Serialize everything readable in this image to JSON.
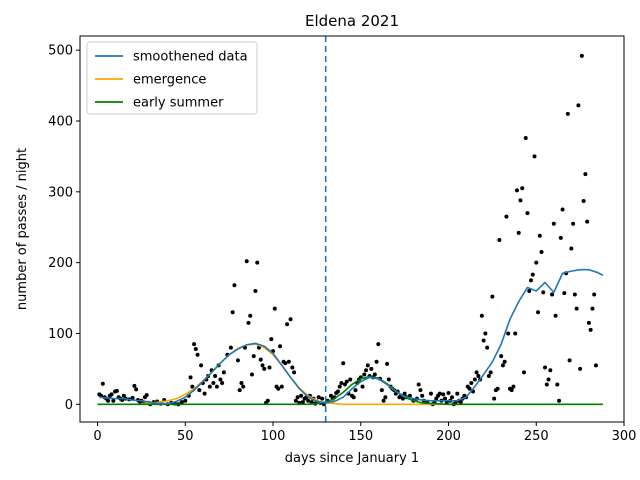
{
  "chart_data": {
    "type": "scatter",
    "title": "Eldena 2021",
    "xlabel": "days since January 1",
    "ylabel": "number of passes / night",
    "xlim": [
      -10,
      300
    ],
    "ylim": [
      -25,
      520
    ],
    "xticks": [
      0,
      50,
      100,
      150,
      200,
      250,
      300
    ],
    "yticks": [
      0,
      100,
      200,
      300,
      400,
      500
    ],
    "vline_x": 130,
    "legend_position": "top-left",
    "colors": {
      "smoothened": "#1f77b4",
      "emergence": "#ffa500",
      "early_summer": "#008000",
      "points": "#000000",
      "vline": "#1f77b4"
    },
    "series": [
      {
        "name": "smoothened data",
        "kind": "line",
        "x": [
          1,
          5,
          10,
          15,
          20,
          25,
          30,
          35,
          40,
          45,
          50,
          55,
          60,
          65,
          70,
          75,
          80,
          85,
          90,
          95,
          100,
          105,
          110,
          115,
          120,
          125,
          130,
          135,
          140,
          145,
          150,
          155,
          160,
          165,
          170,
          175,
          180,
          185,
          190,
          195,
          200,
          205,
          210,
          215,
          220,
          225,
          230,
          235,
          240,
          245,
          250,
          255,
          260,
          265,
          270,
          275,
          280,
          285,
          288
        ],
        "y": [
          10,
          9,
          8,
          8,
          6,
          5,
          3,
          1,
          1,
          4,
          10,
          20,
          32,
          45,
          58,
          70,
          78,
          84,
          86,
          82,
          72,
          55,
          38,
          22,
          10,
          4,
          2,
          4,
          10,
          22,
          32,
          38,
          36,
          28,
          18,
          11,
          8,
          6,
          5,
          5,
          5,
          5,
          10,
          25,
          42,
          60,
          85,
          120,
          145,
          165,
          160,
          172,
          158,
          185,
          188,
          190,
          190,
          186,
          182
        ]
      },
      {
        "name": "emergence",
        "kind": "line",
        "x": [
          25,
          30,
          35,
          40,
          45,
          50,
          55,
          60,
          65,
          70,
          75,
          80,
          85,
          90,
          95,
          100,
          105,
          110,
          115,
          120,
          125,
          130,
          135,
          140,
          145,
          150,
          160,
          170,
          180,
          190,
          200,
          210,
          220,
          240,
          260,
          280,
          288
        ],
        "y": [
          1,
          2,
          3,
          5,
          8,
          14,
          22,
          33,
          45,
          58,
          70,
          79,
          84,
          85,
          80,
          70,
          55,
          38,
          23,
          12,
          5,
          2,
          1,
          0,
          0,
          0,
          0,
          0,
          0,
          0,
          0,
          0,
          0,
          0,
          0,
          0,
          0
        ]
      },
      {
        "name": "early summer",
        "kind": "line",
        "x": [
          0,
          100,
          120,
          125,
          130,
          135,
          140,
          145,
          150,
          155,
          160,
          165,
          170,
          175,
          180,
          185,
          190,
          200,
          220,
          250,
          288
        ],
        "y": [
          0,
          0,
          0,
          1,
          3,
          8,
          17,
          28,
          36,
          39,
          37,
          29,
          19,
          10,
          5,
          2,
          1,
          0,
          0,
          0,
          0
        ]
      }
    ],
    "points": [
      [
        1,
        14
      ],
      [
        2,
        12
      ],
      [
        3,
        29
      ],
      [
        4,
        10
      ],
      [
        5,
        8
      ],
      [
        6,
        5
      ],
      [
        7,
        12
      ],
      [
        8,
        14
      ],
      [
        9,
        5
      ],
      [
        10,
        18
      ],
      [
        11,
        19
      ],
      [
        12,
        10
      ],
      [
        13,
        8
      ],
      [
        14,
        6
      ],
      [
        15,
        12
      ],
      [
        16,
        8
      ],
      [
        18,
        7
      ],
      [
        20,
        9
      ],
      [
        21,
        26
      ],
      [
        22,
        21
      ],
      [
        23,
        6
      ],
      [
        24,
        4
      ],
      [
        25,
        5
      ],
      [
        26,
        3
      ],
      [
        27,
        10
      ],
      [
        28,
        13
      ],
      [
        29,
        2
      ],
      [
        30,
        0
      ],
      [
        32,
        3
      ],
      [
        34,
        4
      ],
      [
        36,
        1
      ],
      [
        38,
        6
      ],
      [
        40,
        0
      ],
      [
        42,
        2
      ],
      [
        44,
        1
      ],
      [
        46,
        0
      ],
      [
        48,
        3
      ],
      [
        50,
        5
      ],
      [
        52,
        12
      ],
      [
        53,
        38
      ],
      [
        54,
        25
      ],
      [
        55,
        85
      ],
      [
        56,
        78
      ],
      [
        57,
        70
      ],
      [
        58,
        20
      ],
      [
        59,
        55
      ],
      [
        60,
        30
      ],
      [
        61,
        15
      ],
      [
        62,
        35
      ],
      [
        63,
        40
      ],
      [
        64,
        25
      ],
      [
        65,
        48
      ],
      [
        66,
        30
      ],
      [
        67,
        40
      ],
      [
        68,
        25
      ],
      [
        69,
        55
      ],
      [
        70,
        35
      ],
      [
        71,
        30
      ],
      [
        72,
        45
      ],
      [
        74,
        70
      ],
      [
        76,
        80
      ],
      [
        77,
        130
      ],
      [
        78,
        168
      ],
      [
        80,
        62
      ],
      [
        81,
        20
      ],
      [
        82,
        30
      ],
      [
        83,
        25
      ],
      [
        84,
        80
      ],
      [
        85,
        202
      ],
      [
        86,
        115
      ],
      [
        87,
        125
      ],
      [
        88,
        42
      ],
      [
        89,
        68
      ],
      [
        90,
        160
      ],
      [
        91,
        200
      ],
      [
        92,
        80
      ],
      [
        93,
        63
      ],
      [
        94,
        55
      ],
      [
        95,
        50
      ],
      [
        96,
        2
      ],
      [
        97,
        5
      ],
      [
        98,
        52
      ],
      [
        99,
        92
      ],
      [
        100,
        75
      ],
      [
        101,
        135
      ],
      [
        102,
        25
      ],
      [
        103,
        22
      ],
      [
        104,
        82
      ],
      [
        105,
        25
      ],
      [
        106,
        60
      ],
      [
        107,
        58
      ],
      [
        108,
        113
      ],
      [
        109,
        60
      ],
      [
        110,
        120
      ],
      [
        111,
        52
      ],
      [
        112,
        45
      ],
      [
        113,
        5
      ],
      [
        114,
        10
      ],
      [
        115,
        2
      ],
      [
        116,
        12
      ],
      [
        117,
        3
      ],
      [
        118,
        8
      ],
      [
        119,
        10
      ],
      [
        120,
        5
      ],
      [
        121,
        12
      ],
      [
        122,
        3
      ],
      [
        123,
        8
      ],
      [
        124,
        1
      ],
      [
        125,
        4
      ],
      [
        126,
        10
      ],
      [
        127,
        2
      ],
      [
        128,
        8
      ],
      [
        129,
        0
      ],
      [
        131,
        5
      ],
      [
        133,
        12
      ],
      [
        134,
        8
      ],
      [
        135,
        10
      ],
      [
        136,
        16
      ],
      [
        137,
        18
      ],
      [
        138,
        25
      ],
      [
        139,
        30
      ],
      [
        140,
        58
      ],
      [
        141,
        28
      ],
      [
        142,
        32
      ],
      [
        143,
        15
      ],
      [
        144,
        35
      ],
      [
        145,
        12
      ],
      [
        146,
        10
      ],
      [
        147,
        20
      ],
      [
        148,
        30
      ],
      [
        149,
        35
      ],
      [
        150,
        38
      ],
      [
        151,
        25
      ],
      [
        152,
        42
      ],
      [
        153,
        48
      ],
      [
        154,
        55
      ],
      [
        155,
        40
      ],
      [
        156,
        50
      ],
      [
        157,
        38
      ],
      [
        158,
        42
      ],
      [
        159,
        60
      ],
      [
        160,
        85
      ],
      [
        161,
        36
      ],
      [
        162,
        20
      ],
      [
        163,
        5
      ],
      [
        164,
        10
      ],
      [
        165,
        57
      ],
      [
        166,
        35
      ],
      [
        167,
        25
      ],
      [
        168,
        22
      ],
      [
        169,
        20
      ],
      [
        170,
        15
      ],
      [
        171,
        18
      ],
      [
        172,
        10
      ],
      [
        173,
        12
      ],
      [
        174,
        8
      ],
      [
        175,
        15
      ],
      [
        176,
        10
      ],
      [
        178,
        12
      ],
      [
        180,
        5
      ],
      [
        182,
        8
      ],
      [
        183,
        28
      ],
      [
        184,
        20
      ],
      [
        185,
        12
      ],
      [
        186,
        5
      ],
      [
        188,
        2
      ],
      [
        190,
        15
      ],
      [
        191,
        0
      ],
      [
        192,
        3
      ],
      [
        193,
        8
      ],
      [
        194,
        12
      ],
      [
        195,
        15
      ],
      [
        196,
        5
      ],
      [
        197,
        14
      ],
      [
        198,
        8
      ],
      [
        199,
        3
      ],
      [
        200,
        16
      ],
      [
        201,
        5
      ],
      [
        202,
        10
      ],
      [
        203,
        0
      ],
      [
        204,
        2
      ],
      [
        205,
        15
      ],
      [
        206,
        5
      ],
      [
        207,
        3
      ],
      [
        208,
        8
      ],
      [
        209,
        12
      ],
      [
        210,
        10
      ],
      [
        211,
        25
      ],
      [
        212,
        22
      ],
      [
        213,
        30
      ],
      [
        214,
        18
      ],
      [
        215,
        35
      ],
      [
        216,
        45
      ],
      [
        217,
        40
      ],
      [
        218,
        35
      ],
      [
        219,
        125
      ],
      [
        220,
        90
      ],
      [
        221,
        100
      ],
      [
        222,
        80
      ],
      [
        223,
        40
      ],
      [
        224,
        45
      ],
      [
        225,
        152
      ],
      [
        226,
        8
      ],
      [
        227,
        20
      ],
      [
        228,
        22
      ],
      [
        229,
        232
      ],
      [
        230,
        68
      ],
      [
        231,
        55
      ],
      [
        232,
        60
      ],
      [
        233,
        265
      ],
      [
        234,
        100
      ],
      [
        235,
        22
      ],
      [
        236,
        20
      ],
      [
        237,
        25
      ],
      [
        238,
        100
      ],
      [
        239,
        302
      ],
      [
        240,
        242
      ],
      [
        241,
        288
      ],
      [
        242,
        305
      ],
      [
        243,
        45
      ],
      [
        244,
        376
      ],
      [
        245,
        270
      ],
      [
        246,
        160
      ],
      [
        247,
        175
      ],
      [
        248,
        183
      ],
      [
        249,
        350
      ],
      [
        250,
        200
      ],
      [
        251,
        130
      ],
      [
        252,
        238
      ],
      [
        253,
        215
      ],
      [
        254,
        158
      ],
      [
        255,
        52
      ],
      [
        256,
        28
      ],
      [
        257,
        35
      ],
      [
        258,
        48
      ],
      [
        259,
        155
      ],
      [
        260,
        255
      ],
      [
        261,
        125
      ],
      [
        262,
        28
      ],
      [
        263,
        5
      ],
      [
        264,
        235
      ],
      [
        265,
        275
      ],
      [
        266,
        157
      ],
      [
        267,
        185
      ],
      [
        268,
        410
      ],
      [
        269,
        62
      ],
      [
        270,
        220
      ],
      [
        271,
        255
      ],
      [
        272,
        155
      ],
      [
        273,
        135
      ],
      [
        274,
        422
      ],
      [
        275,
        50
      ],
      [
        276,
        492
      ],
      [
        277,
        287
      ],
      [
        278,
        325
      ],
      [
        279,
        258
      ],
      [
        280,
        115
      ],
      [
        281,
        105
      ],
      [
        282,
        135
      ],
      [
        283,
        155
      ],
      [
        284,
        55
      ]
    ]
  }
}
